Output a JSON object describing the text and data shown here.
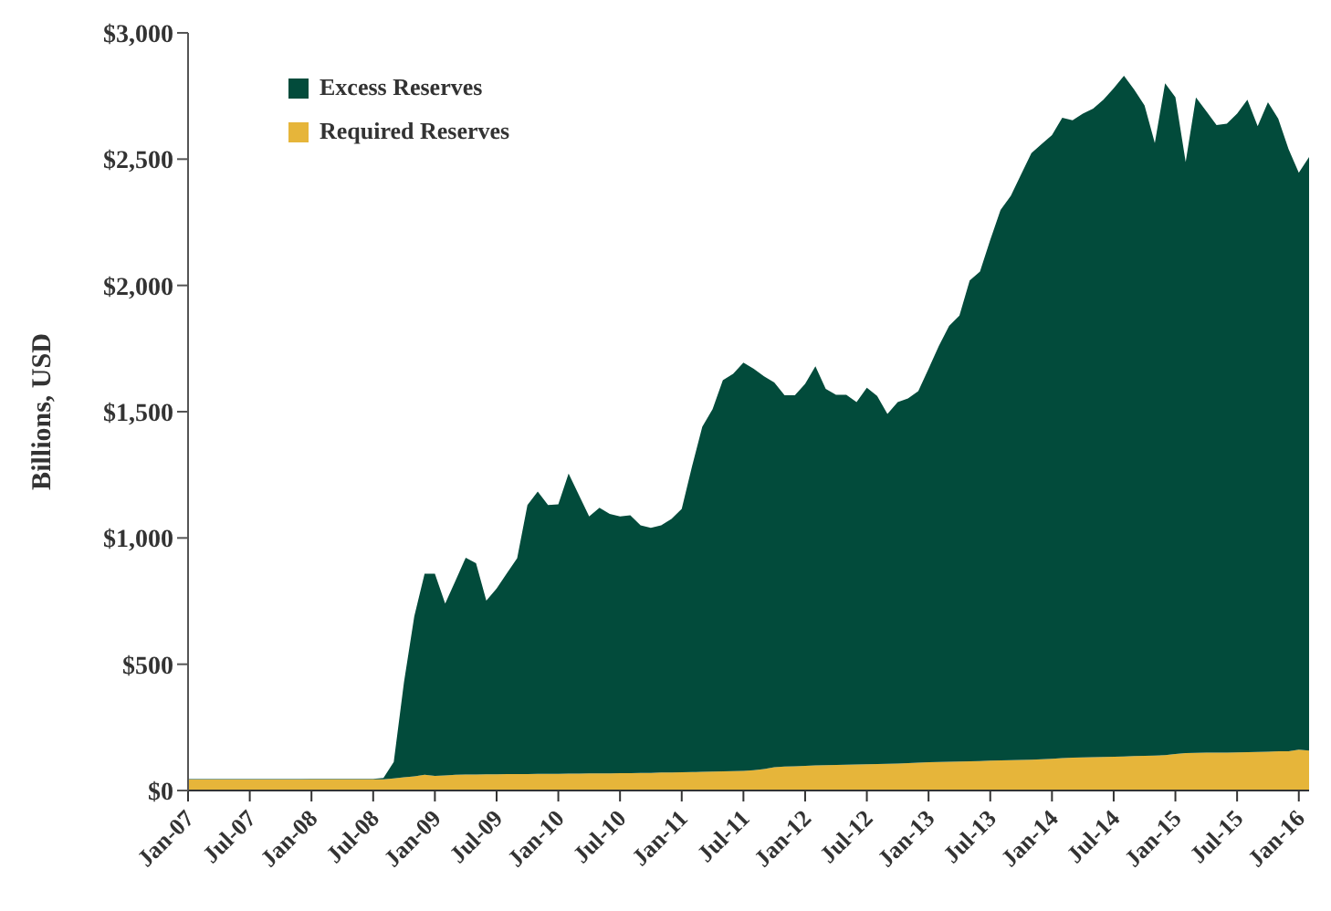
{
  "chart_data": {
    "type": "area",
    "stacked": true,
    "ylabel": "Billions, USD",
    "legend": "top left",
    "grid": false,
    "x": [
      "2007-01",
      "2007-02",
      "2007-03",
      "2007-04",
      "2007-05",
      "2007-06",
      "2007-07",
      "2007-08",
      "2007-09",
      "2007-10",
      "2007-11",
      "2007-12",
      "2008-01",
      "2008-02",
      "2008-03",
      "2008-04",
      "2008-05",
      "2008-06",
      "2008-07",
      "2008-08",
      "2008-09",
      "2008-10",
      "2008-11",
      "2008-12",
      "2009-01",
      "2009-02",
      "2009-03",
      "2009-04",
      "2009-05",
      "2009-06",
      "2009-07",
      "2009-08",
      "2009-09",
      "2009-10",
      "2009-11",
      "2009-12",
      "2010-01",
      "2010-02",
      "2010-03",
      "2010-04",
      "2010-05",
      "2010-06",
      "2010-07",
      "2010-08",
      "2010-09",
      "2010-10",
      "2010-11",
      "2010-12",
      "2011-01",
      "2011-02",
      "2011-03",
      "2011-04",
      "2011-05",
      "2011-06",
      "2011-07",
      "2011-08",
      "2011-09",
      "2011-10",
      "2011-11",
      "2011-12",
      "2012-01",
      "2012-02",
      "2012-03",
      "2012-04",
      "2012-05",
      "2012-06",
      "2012-07",
      "2012-08",
      "2012-09",
      "2012-10",
      "2012-11",
      "2012-12",
      "2013-01",
      "2013-02",
      "2013-03",
      "2013-04",
      "2013-05",
      "2013-06",
      "2013-07",
      "2013-08",
      "2013-09",
      "2013-10",
      "2013-11",
      "2013-12",
      "2014-01",
      "2014-02",
      "2014-03",
      "2014-04",
      "2014-05",
      "2014-06",
      "2014-07",
      "2014-08",
      "2014-09",
      "2014-10",
      "2014-11",
      "2014-12",
      "2015-01",
      "2015-02",
      "2015-03",
      "2015-04",
      "2015-05",
      "2015-06",
      "2015-07",
      "2015-08",
      "2015-09",
      "2015-10",
      "2015-11",
      "2015-12",
      "2016-01",
      "2016-02"
    ],
    "series": [
      {
        "name": "Required Reserves",
        "color": "#e6b53a",
        "values": [
          43,
          43,
          43,
          43,
          43,
          43,
          43,
          43,
          43,
          43,
          43,
          43,
          44,
          44,
          44,
          44,
          44,
          44,
          44,
          44,
          48,
          52,
          56,
          62,
          58,
          60,
          62,
          63,
          63,
          64,
          64,
          65,
          65,
          65,
          66,
          66,
          66,
          67,
          67,
          68,
          68,
          68,
          69,
          69,
          70,
          70,
          71,
          71,
          72,
          73,
          74,
          75,
          76,
          77,
          78,
          80,
          85,
          92,
          95,
          96,
          98,
          99,
          100,
          101,
          102,
          103,
          104,
          105,
          106,
          107,
          108,
          110,
          112,
          113,
          114,
          115,
          116,
          117,
          118,
          119,
          120,
          121,
          122,
          124,
          126,
          128,
          130,
          131,
          132,
          133,
          134,
          135,
          136,
          137,
          138,
          140,
          145,
          148,
          149,
          150,
          150,
          150,
          151,
          152,
          153,
          154,
          155,
          155,
          162,
          158
        ]
      },
      {
        "name": "Excess Reserves",
        "color": "#024b3b",
        "values": [
          2,
          2,
          2,
          2,
          2,
          2,
          2,
          2,
          2,
          2,
          2,
          2,
          2,
          2,
          2,
          2,
          2,
          2,
          2,
          6,
          65,
          378,
          634,
          796,
          800,
          680,
          768,
          859,
          837,
          688,
          736,
          795,
          855,
          1065,
          1118,
          1064,
          1067,
          1188,
          1103,
          1017,
          1052,
          1027,
          1016,
          1021,
          980,
          970,
          979,
          1004,
          1043,
          1210,
          1366,
          1435,
          1549,
          1573,
          1616,
          1590,
          1555,
          1524,
          1470,
          1469,
          1512,
          1581,
          1490,
          1466,
          1465,
          1435,
          1491,
          1457,
          1385,
          1431,
          1444,
          1471,
          1558,
          1647,
          1726,
          1765,
          1904,
          1938,
          2062,
          2180,
          2235,
          2319,
          2402,
          2436,
          2469,
          2536,
          2524,
          2549,
          2568,
          2602,
          2646,
          2695,
          2639,
          2576,
          2426,
          2660,
          2600,
          2341,
          2595,
          2540,
          2485,
          2490,
          2529,
          2583,
          2477,
          2571,
          2505,
          2385,
          2284,
          2350
        ]
      }
    ],
    "xlim": [
      "2007-01",
      "2016-02"
    ],
    "xticks": [
      {
        "value": "2007-01",
        "label": "Jan-07"
      },
      {
        "value": "2007-07",
        "label": "Jul-07"
      },
      {
        "value": "2008-01",
        "label": "Jan-08"
      },
      {
        "value": "2008-07",
        "label": "Jul-08"
      },
      {
        "value": "2009-01",
        "label": "Jan-09"
      },
      {
        "value": "2009-07",
        "label": "Jul-09"
      },
      {
        "value": "2010-01",
        "label": "Jan-10"
      },
      {
        "value": "2010-07",
        "label": "Jul-10"
      },
      {
        "value": "2011-01",
        "label": "Jan-11"
      },
      {
        "value": "2011-07",
        "label": "Jul-11"
      },
      {
        "value": "2012-01",
        "label": "Jan-12"
      },
      {
        "value": "2012-07",
        "label": "Jul-12"
      },
      {
        "value": "2013-01",
        "label": "Jan-13"
      },
      {
        "value": "2013-07",
        "label": "Jul-13"
      },
      {
        "value": "2014-01",
        "label": "Jan-14"
      },
      {
        "value": "2014-07",
        "label": "Jul-14"
      },
      {
        "value": "2015-01",
        "label": "Jan-15"
      },
      {
        "value": "2015-07",
        "label": "Jul-15"
      },
      {
        "value": "2016-01",
        "label": "Jan-16"
      }
    ],
    "ylim": [
      0,
      3000
    ],
    "yticks": [
      {
        "value": 0,
        "label": "$0"
      },
      {
        "value": 500,
        "label": "$500"
      },
      {
        "value": 1000,
        "label": "$1,000"
      },
      {
        "value": 1500,
        "label": "$1,500"
      },
      {
        "value": 2000,
        "label": "$2,000"
      },
      {
        "value": 2500,
        "label": "$2,500"
      },
      {
        "value": 3000,
        "label": "$3,000"
      }
    ]
  }
}
